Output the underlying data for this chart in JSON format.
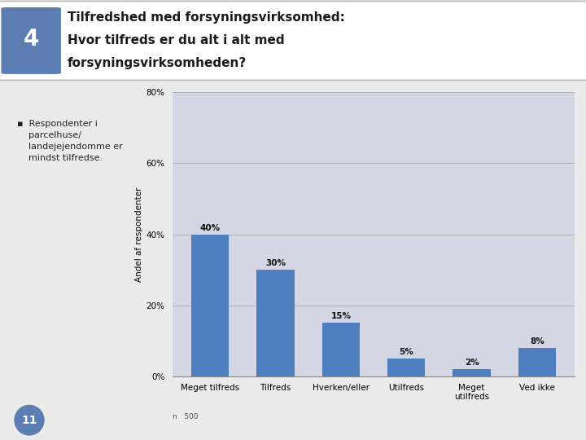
{
  "categories": [
    "Meget tilfreds",
    "Tilfreds",
    "Hverken/eller",
    "Utilfreds",
    "Meget\nutilfreds",
    "Ved ikke"
  ],
  "values": [
    40,
    30,
    15,
    5,
    2,
    8
  ],
  "bar_color": "#4D7EBF",
  "ylabel": "Andel af respondenter",
  "ylim": [
    0,
    80
  ],
  "yticks": [
    0,
    20,
    40,
    60,
    80
  ],
  "ytick_labels": [
    "0%",
    "20%",
    "40%",
    "60%",
    "80%"
  ],
  "background_color": "#D4D7E3",
  "plot_bg_color": "#D4D7E3",
  "title_line1": "Tilfredshed med forsyningsvirksomhed:",
  "title_line2": "Hvor tilfreds er du alt i alt med",
  "title_line3": "forsyningsvirksomheden?",
  "slide_number": "4",
  "slide_num_bg": "#5B7DB1",
  "note_text": "Respondenter i\nparcelhuse/\nlandejejendomme er\nmindst tilfredse.",
  "n_label": "n   500",
  "page_number": "11",
  "page_num_bg": "#5B7DB1",
  "header_bg": "#FFFFFF",
  "body_bg": "#D4D7E3",
  "outer_bg": "#EBEBEB"
}
